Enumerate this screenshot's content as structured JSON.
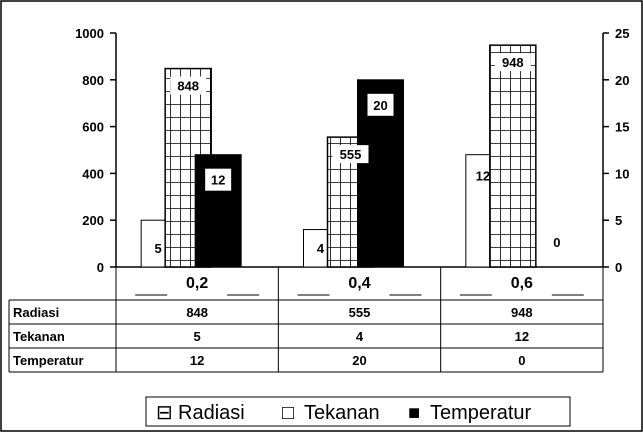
{
  "chart_data": {
    "type": "bar",
    "categories": [
      "0,2",
      "0,4",
      "0,6"
    ],
    "series": [
      {
        "name": "Radiasi",
        "axis": "left",
        "values": [
          848,
          555,
          948
        ],
        "pattern": "grid"
      },
      {
        "name": "Tekanan",
        "axis": "right",
        "values": [
          5,
          4,
          12
        ],
        "pattern": "white"
      },
      {
        "name": "Temperatur",
        "axis": "right",
        "values": [
          12,
          20,
          0
        ],
        "pattern": "black"
      }
    ],
    "left_axis": {
      "ylim": [
        0,
        1000
      ],
      "ticks": [
        "0",
        "200",
        "400",
        "600",
        "800",
        "1000"
      ]
    },
    "right_axis": {
      "ylim": [
        0,
        25
      ],
      "ticks": [
        "0",
        "5",
        "10",
        "15",
        "20",
        "25"
      ]
    },
    "data_table": {
      "rows": [
        {
          "label": "Radiasi",
          "values": [
            "848",
            "555",
            "948"
          ]
        },
        {
          "label": "Tekanan",
          "values": [
            "5",
            "4",
            "12"
          ]
        },
        {
          "label": "Temperatur",
          "values": [
            "12",
            "20",
            "0"
          ]
        }
      ]
    },
    "legend": {
      "placement": "bottom",
      "items": [
        {
          "label": "Radiasi",
          "symbol": "⊟"
        },
        {
          "label": "Tekanan",
          "symbol": "□"
        },
        {
          "label": "Temperatur",
          "symbol": "■"
        }
      ]
    },
    "colors": {
      "black": "#000000",
      "white": "#ffffff",
      "grid": "#000000"
    }
  }
}
